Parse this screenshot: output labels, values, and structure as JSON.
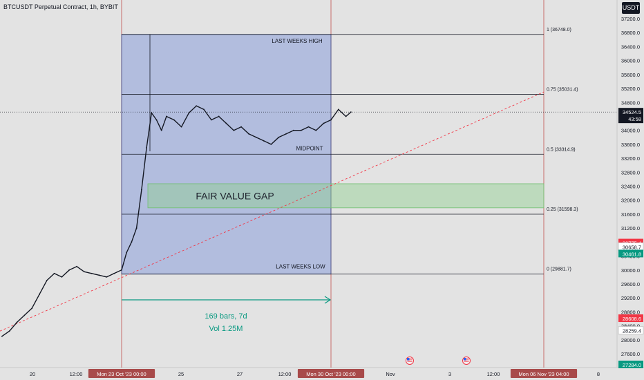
{
  "header": {
    "symbol_title": "BTCUSDT Perpetual Contract, 1h, BYBIT",
    "currency_badge": "USDT"
  },
  "chart_data": {
    "type": "line",
    "title": "BTCUSDT Perpetual Contract, 1h, BYBIT",
    "ylim": [
      27000,
      37400
    ],
    "y_ticks": [
      37200,
      36800,
      36400,
      36000,
      35600,
      35200,
      34800,
      34400,
      34000,
      33600,
      33200,
      32800,
      32400,
      32000,
      31600,
      31200,
      30800,
      30400,
      30000,
      29600,
      29200,
      28800,
      28400,
      28000,
      27600
    ],
    "x_ticks": [
      "20",
      "12:00",
      "Mon 23 Oct '23  00:00",
      "25",
      "27",
      "12:00",
      "Mon 30 Oct '23  00:00",
      "Nov",
      "3",
      "12:00",
      "Mon 06 Nov '23  04:00",
      "8"
    ],
    "x_ticks_highlighted": [
      "Mon 23 Oct '23  00:00",
      "Mon 30 Oct '23  00:00",
      "Mon 06 Nov '23  04:00"
    ],
    "grid": true,
    "series": [
      {
        "x": [
          "19 Oct 00:00",
          "19 Oct 06:00",
          "19 Oct 12:00",
          "19 Oct 18:00",
          "20 Oct 00:00",
          "20 Oct 06:00",
          "20 Oct 12:00",
          "20 Oct 18:00",
          "21 Oct 00:00",
          "21 Oct 06:00",
          "21 Oct 12:00",
          "21 Oct 18:00",
          "22 Oct 00:00",
          "22 Oct 06:00",
          "22 Oct 12:00",
          "22 Oct 18:00",
          "23 Oct 00:00",
          "23 Oct 04:00",
          "23 Oct 08:00",
          "23 Oct 12:00",
          "23 Oct 16:00",
          "23 Oct 20:00",
          "24 Oct 00:00",
          "24 Oct 04:00",
          "24 Oct 08:00",
          "24 Oct 12:00",
          "24 Oct 18:00",
          "25 Oct 00:00",
          "25 Oct 06:00",
          "25 Oct 12:00",
          "25 Oct 18:00",
          "26 Oct 00:00",
          "26 Oct 06:00",
          "26 Oct 12:00",
          "26 Oct 18:00",
          "27 Oct 00:00",
          "27 Oct 06:00",
          "27 Oct 12:00",
          "27 Oct 18:00",
          "28 Oct 00:00",
          "28 Oct 06:00",
          "28 Oct 12:00",
          "28 Oct 18:00",
          "29 Oct 00:00",
          "29 Oct 06:00",
          "29 Oct 12:00",
          "29 Oct 18:00",
          "30 Oct 00:00",
          "30 Oct 06:00",
          "30 Oct 12:00",
          "30 Oct 16:00"
        ],
        "y": [
          28100,
          28250,
          28500,
          28700,
          28900,
          29300,
          29700,
          29900,
          29800,
          30000,
          30100,
          29950,
          29900,
          29850,
          29800,
          29900,
          30000,
          30500,
          30800,
          31200,
          32300,
          33500,
          34500,
          34300,
          34000,
          34400,
          34300,
          34100,
          34500,
          34700,
          34600,
          34300,
          34400,
          34200,
          34000,
          34100,
          33900,
          33800,
          33700,
          33600,
          33800,
          33900,
          34000,
          34000,
          34100,
          34000,
          34200,
          34300,
          34600,
          34400,
          34524.5
        ]
      }
    ],
    "annotations": {
      "zone_labels": [
        "LAST WEEKS HIGH",
        "MIDPOINT",
        "LAST WEEKS LOW"
      ],
      "fair_value_gap": {
        "label": "FAIR VALUE GAP",
        "from": 31780,
        "to": 32470
      },
      "fib_levels": [
        {
          "label": "1 (36748.0)",
          "price": 36748.0
        },
        {
          "label": "0.75 (35031.4)",
          "price": 35031.4
        },
        {
          "label": "0.5 (33314.9)",
          "price": 33314.9
        },
        {
          "label": "0.25 (31598.3)",
          "price": 31598.3
        },
        {
          "label": "0 (29881.7)",
          "price": 29881.7
        }
      ],
      "measure": {
        "bars": "169 bars, 7d",
        "volume": "Vol 1.25M"
      }
    },
    "price_badges": [
      {
        "label": "34524.5",
        "sub": "43:58",
        "price": 34524.5,
        "color": "#131722"
      },
      {
        "label": "30775.4",
        "price": 30775.4,
        "color": "#f23645"
      },
      {
        "label": "30658.7",
        "price": 30658.7,
        "color": "#ffffff"
      },
      {
        "label": "30461.8",
        "price": 30461.8,
        "color": "#089981"
      },
      {
        "label": "28608.6",
        "price": 28608.6,
        "color": "#f23645"
      },
      {
        "label": "28259.4",
        "price": 28259.4,
        "color": "#ffffff"
      },
      {
        "label": "27284.0",
        "price": 27284.0,
        "color": "#089981"
      }
    ]
  }
}
